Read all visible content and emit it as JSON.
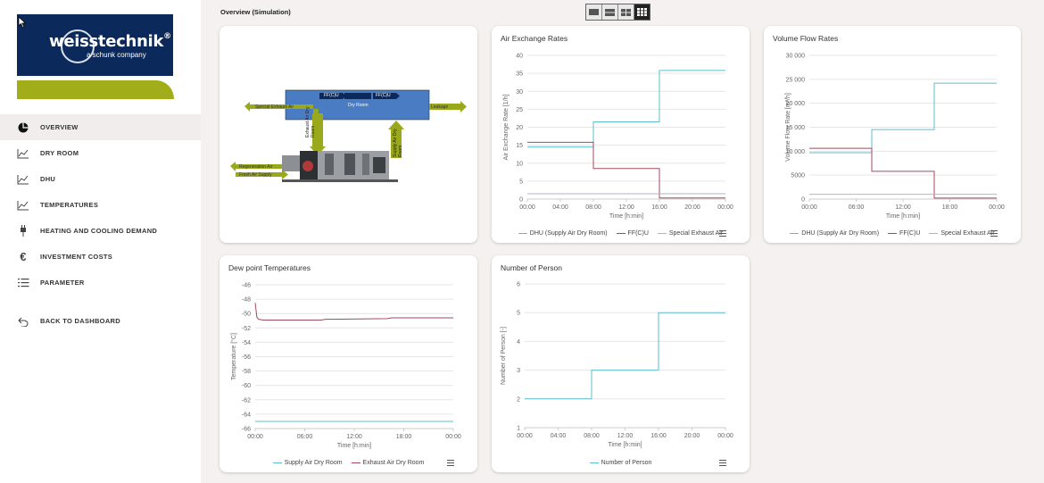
{
  "brand": {
    "name": "weisstechnik",
    "reg": "®",
    "tagline": "a schunk company"
  },
  "nav": {
    "items": [
      {
        "label": "OVERVIEW",
        "icon": "pie-chart-icon"
      },
      {
        "label": "DRY ROOM",
        "icon": "line-chart-icon"
      },
      {
        "label": "DHU",
        "icon": "line-chart-icon"
      },
      {
        "label": "TEMPERATURES",
        "icon": "line-chart-icon"
      },
      {
        "label": "HEATING AND COOLING DEMAND",
        "icon": "plug-icon"
      },
      {
        "label": "INVESTMENT COSTS",
        "icon": "euro-icon"
      },
      {
        "label": "PARAMETER",
        "icon": "list-icon"
      }
    ],
    "back": {
      "label": "BACK TO DASHBOARD",
      "icon": "back-arrow-icon"
    }
  },
  "header": {
    "title": "Overview (Simulation)"
  },
  "schematic": {
    "labels": {
      "dry_room": "Dry Room",
      "ffcu_left": "FF(C)U",
      "ffcu_right": "FF(C)U",
      "special_exhaust": "Special Exhaust Air",
      "leakage": "Leakage",
      "exhaust_dry_room": "Exhaust Air Dry Room",
      "supply_dry_room": "Supply Air Dry Room",
      "regeneration": "Regeneration Air",
      "fresh_air": "Fresh Air Supply"
    }
  },
  "chart_data": [
    {
      "type": "line",
      "title": "Air Exchange Rates",
      "xlabel": "Time [h:min]",
      "ylabel": "Air Exchange Rate [1/h]",
      "x_ticks": [
        "00:00",
        "04:00",
        "08:00",
        "12:00",
        "16:00",
        "20:00",
        "00:00"
      ],
      "xlim": [
        0,
        24
      ],
      "ylim": [
        0,
        40
      ],
      "y_ticks": [
        0,
        5,
        10,
        15,
        20,
        25,
        30,
        35,
        40
      ],
      "series": [
        {
          "name": "DHU (Supply Air Dry Room)",
          "color": "#5bc0cc",
          "x": [
            0,
            8,
            8,
            16,
            16,
            24
          ],
          "y": [
            14.5,
            14.5,
            21.5,
            21.5,
            35.8,
            35.8
          ]
        },
        {
          "name": "FF(C)U",
          "color": "#a24a5c",
          "x": [
            0,
            8,
            8,
            16,
            16,
            24
          ],
          "y": [
            15.8,
            15.8,
            8.5,
            8.5,
            0.3,
            0.3
          ]
        },
        {
          "name": "Special Exhaust Air",
          "color": "#b7b2c5",
          "x": [
            0,
            24
          ],
          "y": [
            1.5,
            1.5
          ]
        }
      ]
    },
    {
      "type": "line",
      "title": "Volume Flow Rates",
      "xlabel": "Time [h:min]",
      "ylabel": "Volume Flow Rate [m³/h]",
      "x_ticks": [
        "00:00",
        "06:00",
        "12:00",
        "18:00",
        "00:00"
      ],
      "xlim": [
        0,
        24
      ],
      "ylim": [
        0,
        30000
      ],
      "y_ticks": [
        0,
        5000,
        10000,
        15000,
        20000,
        25000,
        30000
      ],
      "y_tick_labels": [
        "0",
        "5000",
        "10 000",
        "15 000",
        "20 000",
        "25 000",
        "30 000"
      ],
      "series": [
        {
          "name": "DHU (Supply Air Dry Room)",
          "color": "#5bc0cc",
          "x": [
            0,
            8,
            8,
            16,
            16,
            24
          ],
          "y": [
            9700,
            9700,
            14500,
            14500,
            24200,
            24200
          ]
        },
        {
          "name": "FF(C)U",
          "color": "#a24a5c",
          "x": [
            0,
            8,
            8,
            16,
            16,
            24
          ],
          "y": [
            10600,
            10600,
            5800,
            5800,
            200,
            200
          ]
        },
        {
          "name": "Special Exhaust Air",
          "color": "#b7b2c5",
          "x": [
            0,
            24
          ],
          "y": [
            1000,
            1000
          ]
        }
      ]
    },
    {
      "type": "line",
      "title": "Dew point Temperatures",
      "xlabel": "Time [h:min]",
      "ylabel": "Temperature [°C]",
      "x_ticks": [
        "00:00",
        "06:00",
        "12:00",
        "18:00",
        "00:00"
      ],
      "xlim": [
        0,
        24
      ],
      "ylim": [
        -66,
        -46
      ],
      "y_ticks": [
        -66,
        -64,
        -62,
        -60,
        -58,
        -56,
        -54,
        -52,
        -50,
        -48,
        -46
      ],
      "series": [
        {
          "name": "Supply Air Dry Room",
          "color": "#5bc0cc",
          "x": [
            0,
            24
          ],
          "y": [
            -65,
            -65
          ]
        },
        {
          "name": "Exhaust Air Dry Room",
          "color": "#a24a5c",
          "x": [
            0,
            0.2,
            0.4,
            1,
            8,
            8.5,
            16,
            16.5,
            24
          ],
          "y": [
            -48.5,
            -50.5,
            -50.8,
            -50.9,
            -50.9,
            -50.8,
            -50.7,
            -50.6,
            -50.6
          ]
        }
      ]
    },
    {
      "type": "line",
      "title": "Number of Person",
      "xlabel": "Time [h:min]",
      "ylabel": "Number of Person [-]",
      "x_ticks": [
        "00:00",
        "04:00",
        "08:00",
        "12:00",
        "16:00",
        "20:00",
        "00:00"
      ],
      "xlim": [
        0,
        24
      ],
      "ylim": [
        1,
        6
      ],
      "y_ticks": [
        1,
        2,
        3,
        4,
        5,
        6
      ],
      "series": [
        {
          "name": "Number of Person",
          "color": "#5bc0cc",
          "x": [
            0,
            8,
            8,
            16,
            16,
            24
          ],
          "y": [
            2,
            2,
            3,
            3,
            5,
            5
          ]
        }
      ]
    }
  ]
}
